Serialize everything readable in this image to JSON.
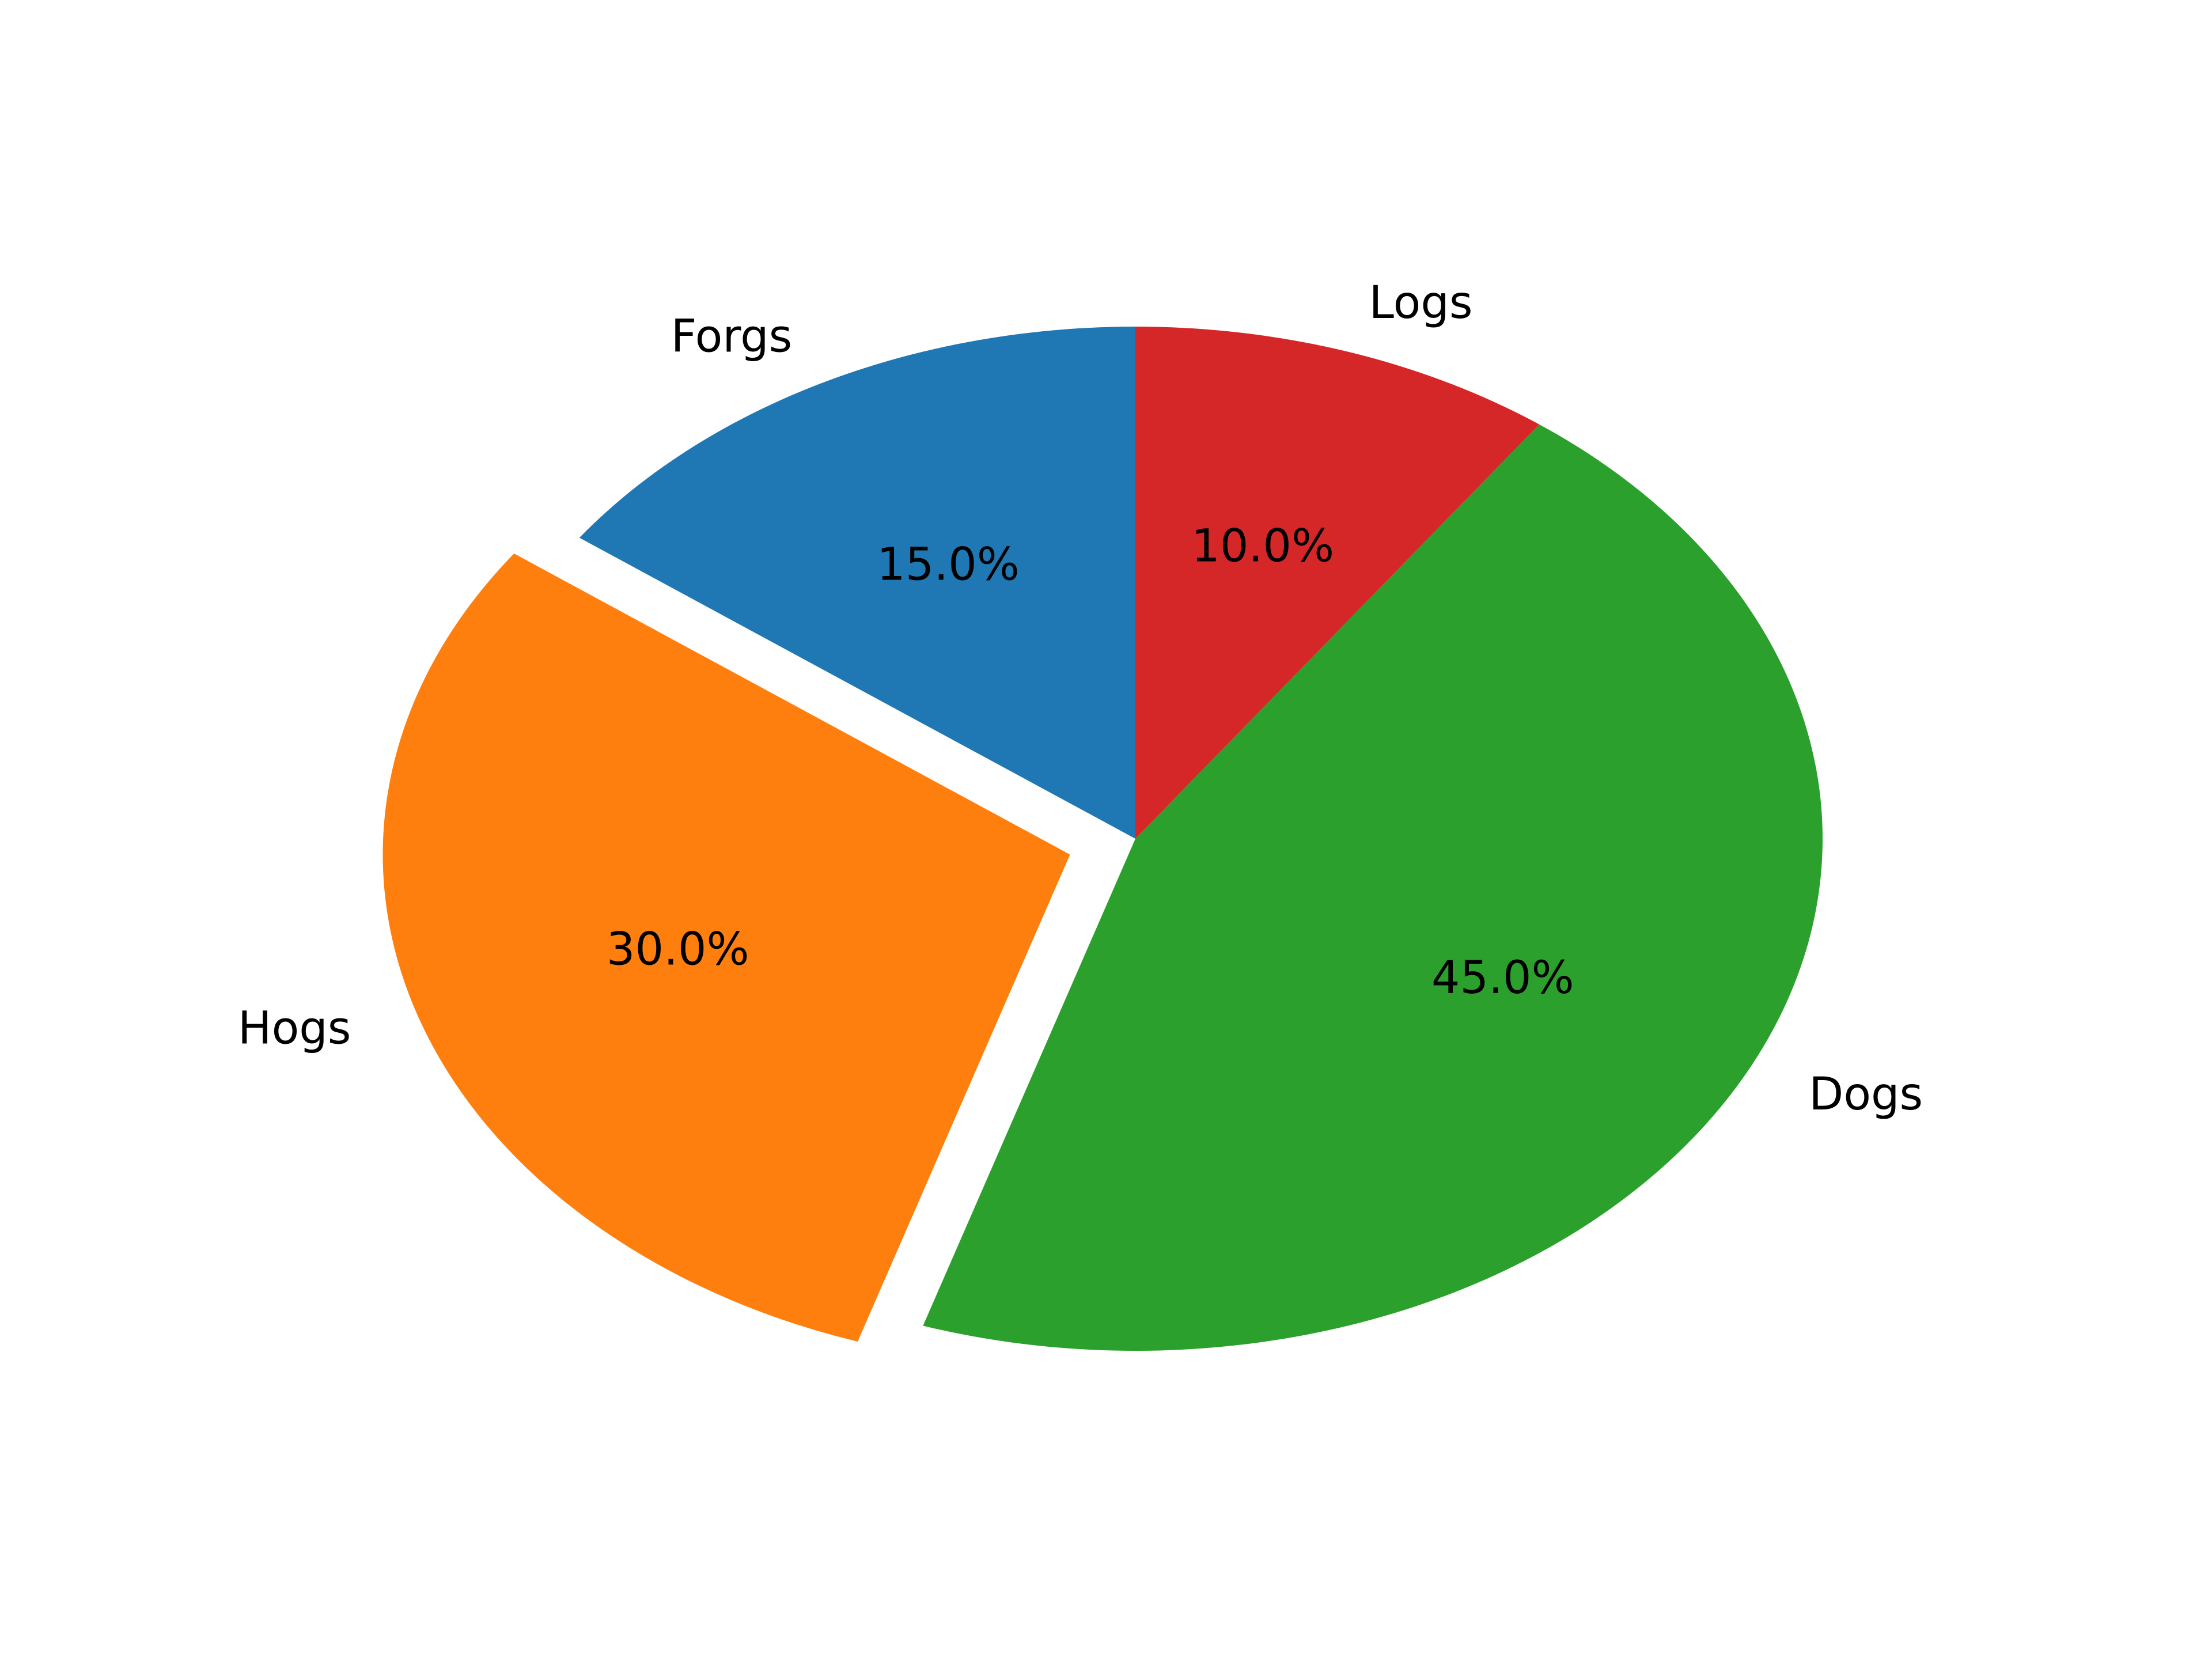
{
  "chart_data": {
    "type": "pie",
    "categories": [
      "Forgs",
      "Hogs",
      "Dogs",
      "Logs"
    ],
    "values": [
      15,
      30,
      45,
      10
    ],
    "value_labels": [
      "15.0%",
      "30.0%",
      "45.0%",
      "10.0%"
    ],
    "colors": [
      "#1f77b4",
      "#ff7f0e",
      "#2ca02c",
      "#d62728"
    ],
    "exploded": [
      false,
      true,
      false,
      false
    ],
    "start_angle": 90,
    "direction": "counterclockwise"
  }
}
